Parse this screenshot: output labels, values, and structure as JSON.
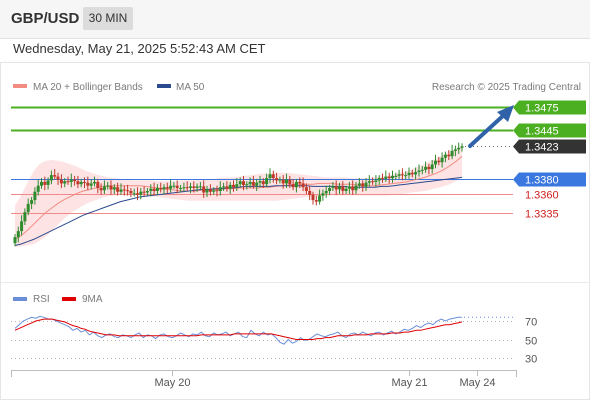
{
  "header": {
    "symbol": "GBP/USD",
    "timeframe": "30 MIN",
    "timestamp": "Wednesday, May 21, 2025 5:52:43 AM CET"
  },
  "legend": {
    "ma20": "MA 20 + Bollinger Bands",
    "ma50": "MA 50",
    "credit": "Research © 2025 Trading Central",
    "rsi": "RSI",
    "ma9": "9MA"
  },
  "colors": {
    "candle_up": "#2e8b2e",
    "candle_down": "#c0392b",
    "ma20": "#f28b82",
    "ma50": "#2c4a8f",
    "bollinger_fill": "#fde3e3",
    "resistance": "#4caf22",
    "pivot": "#3a78e0",
    "support": "#f08a8a",
    "arrow": "#2f62a8",
    "rsi": "#6a8fd8",
    "rsi_ma": "#e00000"
  },
  "chart_data": [
    {
      "type": "candlestick",
      "title": "GBP/USD 30 MIN",
      "x_ticks": [
        "May 20",
        "May 21",
        "May 24"
      ],
      "ylim": [
        1.329,
        1.348
      ],
      "price_levels": [
        {
          "value": 1.3475,
          "label": "1.3475",
          "kind": "resistance"
        },
        {
          "value": 1.3445,
          "label": "1.3445",
          "kind": "resistance"
        },
        {
          "value": 1.3423,
          "label": "1.3423",
          "kind": "current"
        },
        {
          "value": 1.338,
          "label": "1.3380",
          "kind": "pivot"
        },
        {
          "value": 1.336,
          "label": "1.3360",
          "kind": "support"
        },
        {
          "value": 1.3335,
          "label": "1.3335",
          "kind": "support"
        }
      ],
      "close": [
        1.3303,
        1.3311,
        1.3324,
        1.3336,
        1.3347,
        1.3352,
        1.3363,
        1.3371,
        1.3376,
        1.3372,
        1.3378,
        1.3385,
        1.3383,
        1.3379,
        1.3374,
        1.3377,
        1.3376,
        1.3379,
        1.3377,
        1.3373,
        1.3376,
        1.3375,
        1.3371,
        1.3374,
        1.3376,
        1.3368,
        1.3365,
        1.337,
        1.3371,
        1.3366,
        1.3369,
        1.3363,
        1.3366,
        1.3365,
        1.3364,
        1.3361,
        1.3361,
        1.3359,
        1.3363,
        1.3362,
        1.3364,
        1.3367,
        1.3364,
        1.3368,
        1.3366,
        1.3369,
        1.3367,
        1.3371,
        1.3371,
        1.3368,
        1.3368,
        1.3369,
        1.3368,
        1.337,
        1.3368,
        1.337,
        1.337,
        1.3362,
        1.3366,
        1.3363,
        1.3365,
        1.3364,
        1.3369,
        1.337,
        1.3367,
        1.3372,
        1.3369,
        1.3373,
        1.3377,
        1.3372,
        1.3373,
        1.3376,
        1.3371,
        1.3375,
        1.3377,
        1.3373,
        1.3381,
        1.3386,
        1.3381,
        1.3378,
        1.3379,
        1.3374,
        1.3379,
        1.3373,
        1.3369,
        1.3376,
        1.3374,
        1.3369,
        1.3364,
        1.3359,
        1.3352,
        1.335,
        1.3358,
        1.3361,
        1.3364,
        1.3368,
        1.337,
        1.3366,
        1.337,
        1.3364,
        1.3367,
        1.337,
        1.3365,
        1.3371,
        1.3374,
        1.337,
        1.3375,
        1.3377,
        1.3376,
        1.3378,
        1.3381,
        1.338,
        1.3383,
        1.3381,
        1.3384,
        1.3384,
        1.3386,
        1.3385,
        1.3385,
        1.3388,
        1.3386,
        1.3389,
        1.3391,
        1.3392,
        1.3396,
        1.3393,
        1.3399,
        1.3404,
        1.3402,
        1.3408,
        1.3412,
        1.341,
        1.3417,
        1.3419,
        1.3421,
        1.3423
      ],
      "ma20": [
        1.33,
        1.3305,
        1.3312,
        1.332,
        1.3328,
        1.3336,
        1.3342,
        1.3348,
        1.3353,
        1.3357,
        1.3361,
        1.3364,
        1.3366,
        1.3368,
        1.337,
        1.3371,
        1.3371,
        1.3371,
        1.3371,
        1.3371,
        1.3371,
        1.337,
        1.3369,
        1.3368,
        1.3367,
        1.3366,
        1.3365,
        1.3364,
        1.3364,
        1.3364,
        1.3365,
        1.3365,
        1.3366,
        1.3366,
        1.3367,
        1.3367,
        1.3368,
        1.3368,
        1.3368,
        1.3368,
        1.3369,
        1.3369,
        1.337,
        1.3371,
        1.3372,
        1.3373,
        1.3373,
        1.3373,
        1.3373,
        1.3374,
        1.3374,
        1.3374,
        1.3373,
        1.3373,
        1.3373,
        1.3372,
        1.3371,
        1.3371,
        1.3371,
        1.3372,
        1.3373,
        1.3374,
        1.3375,
        1.3376,
        1.3378,
        1.338,
        1.3382,
        1.3385,
        1.3388,
        1.3392,
        1.3397,
        1.3403,
        1.341
      ],
      "ma50": [
        1.3292,
        1.3294,
        1.3297,
        1.33,
        1.3304,
        1.3308,
        1.3312,
        1.3316,
        1.332,
        1.3324,
        1.3328,
        1.3332,
        1.3335,
        1.3338,
        1.3341,
        1.3344,
        1.3347,
        1.335,
        1.3352,
        1.3354,
        1.3356,
        1.3357,
        1.3358,
        1.3359,
        1.336,
        1.3361,
        1.3362,
        1.3363,
        1.3364,
        1.3365,
        1.3366,
        1.3366,
        1.3367,
        1.3367,
        1.3368,
        1.3368,
        1.3369,
        1.337,
        1.337,
        1.337,
        1.337,
        1.337,
        1.3371,
        1.3371,
        1.3371,
        1.3371,
        1.3371,
        1.3371,
        1.337,
        1.337,
        1.337,
        1.337,
        1.337,
        1.337,
        1.3369,
        1.3369,
        1.3369,
        1.3369,
        1.3369,
        1.337,
        1.337,
        1.3371,
        1.3372,
        1.3373,
        1.3374,
        1.3375,
        1.3376,
        1.3377,
        1.3378,
        1.3379,
        1.338,
        1.3381,
        1.3382
      ],
      "bb_upper": [
        1.3345,
        1.3358,
        1.3375,
        1.339,
        1.34,
        1.3404,
        1.3405,
        1.3404,
        1.3402,
        1.3399,
        1.3396,
        1.3392,
        1.3389,
        1.3386,
        1.3384,
        1.3382,
        1.3381,
        1.338,
        1.3379,
        1.3378,
        1.3378,
        1.3378,
        1.3378,
        1.3377,
        1.3377,
        1.3377,
        1.3377,
        1.3378,
        1.3378,
        1.3378,
        1.3379,
        1.338,
        1.338,
        1.3381,
        1.3382,
        1.3382,
        1.3383,
        1.3384,
        1.3385,
        1.3386,
        1.3387,
        1.3387,
        1.3388,
        1.3388,
        1.3388,
        1.3387,
        1.3386,
        1.3385,
        1.3384,
        1.3383,
        1.3382,
        1.3382,
        1.3382,
        1.3382,
        1.3381,
        1.3381,
        1.3381,
        1.3381,
        1.3382,
        1.3383,
        1.3384,
        1.3386,
        1.3388,
        1.339,
        1.3393,
        1.3396,
        1.34,
        1.3404,
        1.3408,
        1.3412,
        1.3416,
        1.342,
        1.3424
      ],
      "bb_lower": [
        1.329,
        1.3291,
        1.3292,
        1.3294,
        1.3298,
        1.3304,
        1.3312,
        1.332,
        1.3328,
        1.3335,
        1.334,
        1.3345,
        1.3349,
        1.3352,
        1.3355,
        1.3357,
        1.3358,
        1.3359,
        1.3359,
        1.3359,
        1.3359,
        1.3358,
        1.3357,
        1.3356,
        1.3355,
        1.3354,
        1.3353,
        1.3352,
        1.3351,
        1.3351,
        1.3351,
        1.3351,
        1.3351,
        1.3351,
        1.3351,
        1.3351,
        1.3351,
        1.3351,
        1.3351,
        1.3351,
        1.3351,
        1.3351,
        1.3351,
        1.3352,
        1.3353,
        1.3354,
        1.3355,
        1.3356,
        1.3357,
        1.3357,
        1.3358,
        1.3358,
        1.3358,
        1.3358,
        1.3358,
        1.3358,
        1.3358,
        1.3358,
        1.3358,
        1.3358,
        1.3358,
        1.3359,
        1.336,
        1.3361,
        1.3362,
        1.3363,
        1.3364,
        1.3366,
        1.3368,
        1.337,
        1.3373,
        1.3377,
        1.3382
      ]
    },
    {
      "type": "line",
      "title": "RSI",
      "y_ticks": [
        70,
        50,
        30
      ],
      "ylim": [
        20,
        85
      ],
      "rsi": [
        62,
        66,
        70,
        72,
        74,
        73,
        75,
        74,
        72,
        72,
        70,
        68,
        66,
        64,
        60,
        62,
        58,
        60,
        55,
        58,
        54,
        52,
        55,
        56,
        53,
        52,
        55,
        54,
        52,
        55,
        57,
        52,
        55,
        54,
        51,
        55,
        56,
        53,
        52,
        54,
        57,
        55,
        53,
        56,
        55,
        58,
        54,
        53,
        57,
        55,
        56,
        58,
        54,
        56,
        58,
        53,
        52,
        60,
        56,
        54,
        58,
        55,
        56,
        52,
        47,
        45,
        50,
        46,
        48,
        52,
        49,
        50,
        53,
        56,
        54,
        53,
        55,
        56,
        58,
        54,
        52,
        56,
        57,
        55,
        58,
        56,
        54,
        57,
        58,
        55,
        57,
        59,
        56,
        58,
        61,
        60,
        62,
        65,
        63,
        66,
        68,
        66,
        70,
        72,
        70,
        72,
        73,
        74,
        74
      ],
      "rsi_ma": [
        60,
        62,
        64,
        66,
        68,
        70,
        71,
        72,
        72,
        72,
        71,
        70,
        69,
        67,
        65,
        64,
        62,
        61,
        59,
        58,
        57,
        56,
        55,
        55,
        55,
        54,
        54,
        54,
        54,
        54,
        54,
        54,
        54,
        54,
        54,
        54,
        54,
        54,
        54,
        54,
        54,
        54,
        54,
        54,
        54,
        55,
        55,
        55,
        55,
        55,
        55,
        55,
        55,
        56,
        56,
        56,
        56,
        56,
        56,
        56,
        56,
        56,
        56,
        55,
        54,
        53,
        52,
        51,
        50,
        50,
        50,
        50,
        50,
        51,
        51,
        52,
        52,
        53,
        54,
        54,
        54,
        54,
        55,
        55,
        55,
        55,
        56,
        56,
        56,
        56,
        56,
        57,
        57,
        57,
        58,
        58,
        59,
        60,
        60,
        61,
        62,
        63,
        64,
        65,
        66,
        66,
        67,
        68,
        69
      ]
    }
  ]
}
